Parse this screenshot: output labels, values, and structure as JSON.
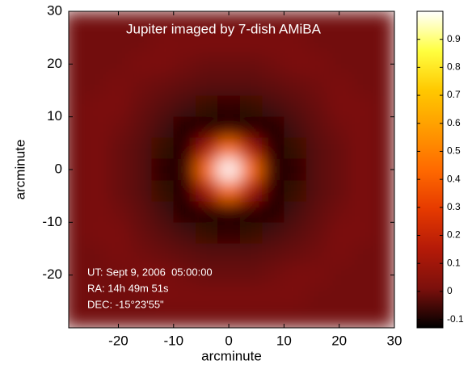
{
  "chart_data": {
    "type": "heatmap",
    "title": "Jupiter imaged by 7-dish AMiBA",
    "annotations": [
      "UT: Sept 9, 2006  05:00:00",
      "RA: 14h 49m 51s",
      "DEC: -15°23'55\""
    ],
    "xlabel": "arcminute",
    "ylabel": "arcminute",
    "x": [
      -28,
      -24,
      -20,
      -16,
      -12,
      -8,
      -4,
      0,
      4,
      8,
      12,
      16,
      20,
      24,
      28
    ],
    "y": [
      28,
      24,
      20,
      16,
      12,
      8,
      4,
      0,
      -4,
      -8,
      -12,
      -16,
      -20,
      -24,
      -28
    ],
    "z": [
      [
        0,
        0,
        0,
        0,
        0,
        0,
        0,
        0,
        0,
        0,
        0,
        0,
        0,
        0,
        0
      ],
      [
        0,
        0,
        0,
        0,
        0.01,
        0.01,
        0.01,
        0.01,
        0.01,
        0.01,
        0.01,
        0,
        0,
        0,
        0
      ],
      [
        0,
        0,
        0,
        0.01,
        0.01,
        0,
        -0.01,
        -0.01,
        -0.01,
        0,
        0.01,
        0.01,
        0,
        0,
        0
      ],
      [
        0,
        0,
        0.01,
        0,
        -0.01,
        -0.02,
        -0.03,
        -0.03,
        -0.03,
        -0.02,
        -0.01,
        0,
        0.01,
        0,
        0
      ],
      [
        0,
        0.01,
        0.01,
        -0.01,
        -0.03,
        -0.05,
        -0.07,
        -0.08,
        -0.07,
        -0.05,
        -0.03,
        -0.01,
        0.01,
        0.01,
        0
      ],
      [
        0,
        0.01,
        0,
        -0.02,
        -0.05,
        -0.1,
        -0.09,
        -0.08,
        -0.09,
        -0.1,
        -0.05,
        -0.02,
        0,
        0.01,
        0
      ],
      [
        0,
        0.01,
        -0.01,
        -0.03,
        -0.07,
        -0.09,
        0.12,
        0.45,
        0.12,
        -0.09,
        -0.07,
        -0.03,
        -0.01,
        0.01,
        0
      ],
      [
        0,
        0.01,
        -0.01,
        -0.03,
        -0.08,
        -0.08,
        0.45,
        1.0,
        0.45,
        -0.08,
        -0.08,
        -0.03,
        -0.01,
        0.01,
        0
      ],
      [
        0,
        0.01,
        -0.01,
        -0.03,
        -0.07,
        -0.09,
        0.12,
        0.45,
        0.12,
        -0.09,
        -0.07,
        -0.03,
        -0.01,
        0.01,
        0
      ],
      [
        0,
        0.01,
        0,
        -0.02,
        -0.05,
        -0.1,
        -0.09,
        -0.08,
        -0.09,
        -0.1,
        -0.05,
        -0.02,
        0,
        0.01,
        0
      ],
      [
        0,
        0.01,
        0.01,
        -0.01,
        -0.03,
        -0.05,
        -0.07,
        -0.08,
        -0.07,
        -0.05,
        -0.03,
        -0.01,
        0.01,
        0.01,
        0
      ],
      [
        0,
        0,
        0.01,
        0,
        -0.01,
        -0.02,
        -0.03,
        -0.03,
        -0.03,
        -0.02,
        -0.01,
        0,
        0.01,
        0,
        0
      ],
      [
        0,
        0,
        0,
        0.01,
        0.01,
        0,
        -0.01,
        -0.01,
        -0.01,
        0,
        0.01,
        0.01,
        0,
        0,
        0
      ],
      [
        0,
        0,
        0,
        0,
        0.01,
        0.01,
        0.01,
        0.01,
        0.01,
        0.01,
        0.01,
        0,
        0,
        0,
        0
      ],
      [
        0,
        0,
        0,
        0,
        0,
        0,
        0,
        0,
        0,
        0,
        0,
        0,
        0,
        0,
        0
      ]
    ],
    "xlim": [
      -29,
      30
    ],
    "ylim": [
      -30,
      30
    ],
    "xticks": [
      -20,
      -10,
      0,
      10,
      20,
      30
    ],
    "yticks": [
      -20,
      -10,
      0,
      10,
      20,
      30
    ],
    "clim": [
      -0.13,
      1.0
    ],
    "cticks": [
      -0.1,
      0,
      0.1,
      0.2,
      0.3,
      0.4,
      0.5,
      0.6,
      0.7,
      0.8,
      0.9
    ],
    "colormap": [
      "#000000",
      "#7c100c",
      "#b51a08",
      "#e63a00",
      "#ff6a00",
      "#ff9a00",
      "#ffc800",
      "#ffff40",
      "#ffffff"
    ],
    "annotation_color": "#ffffff"
  }
}
